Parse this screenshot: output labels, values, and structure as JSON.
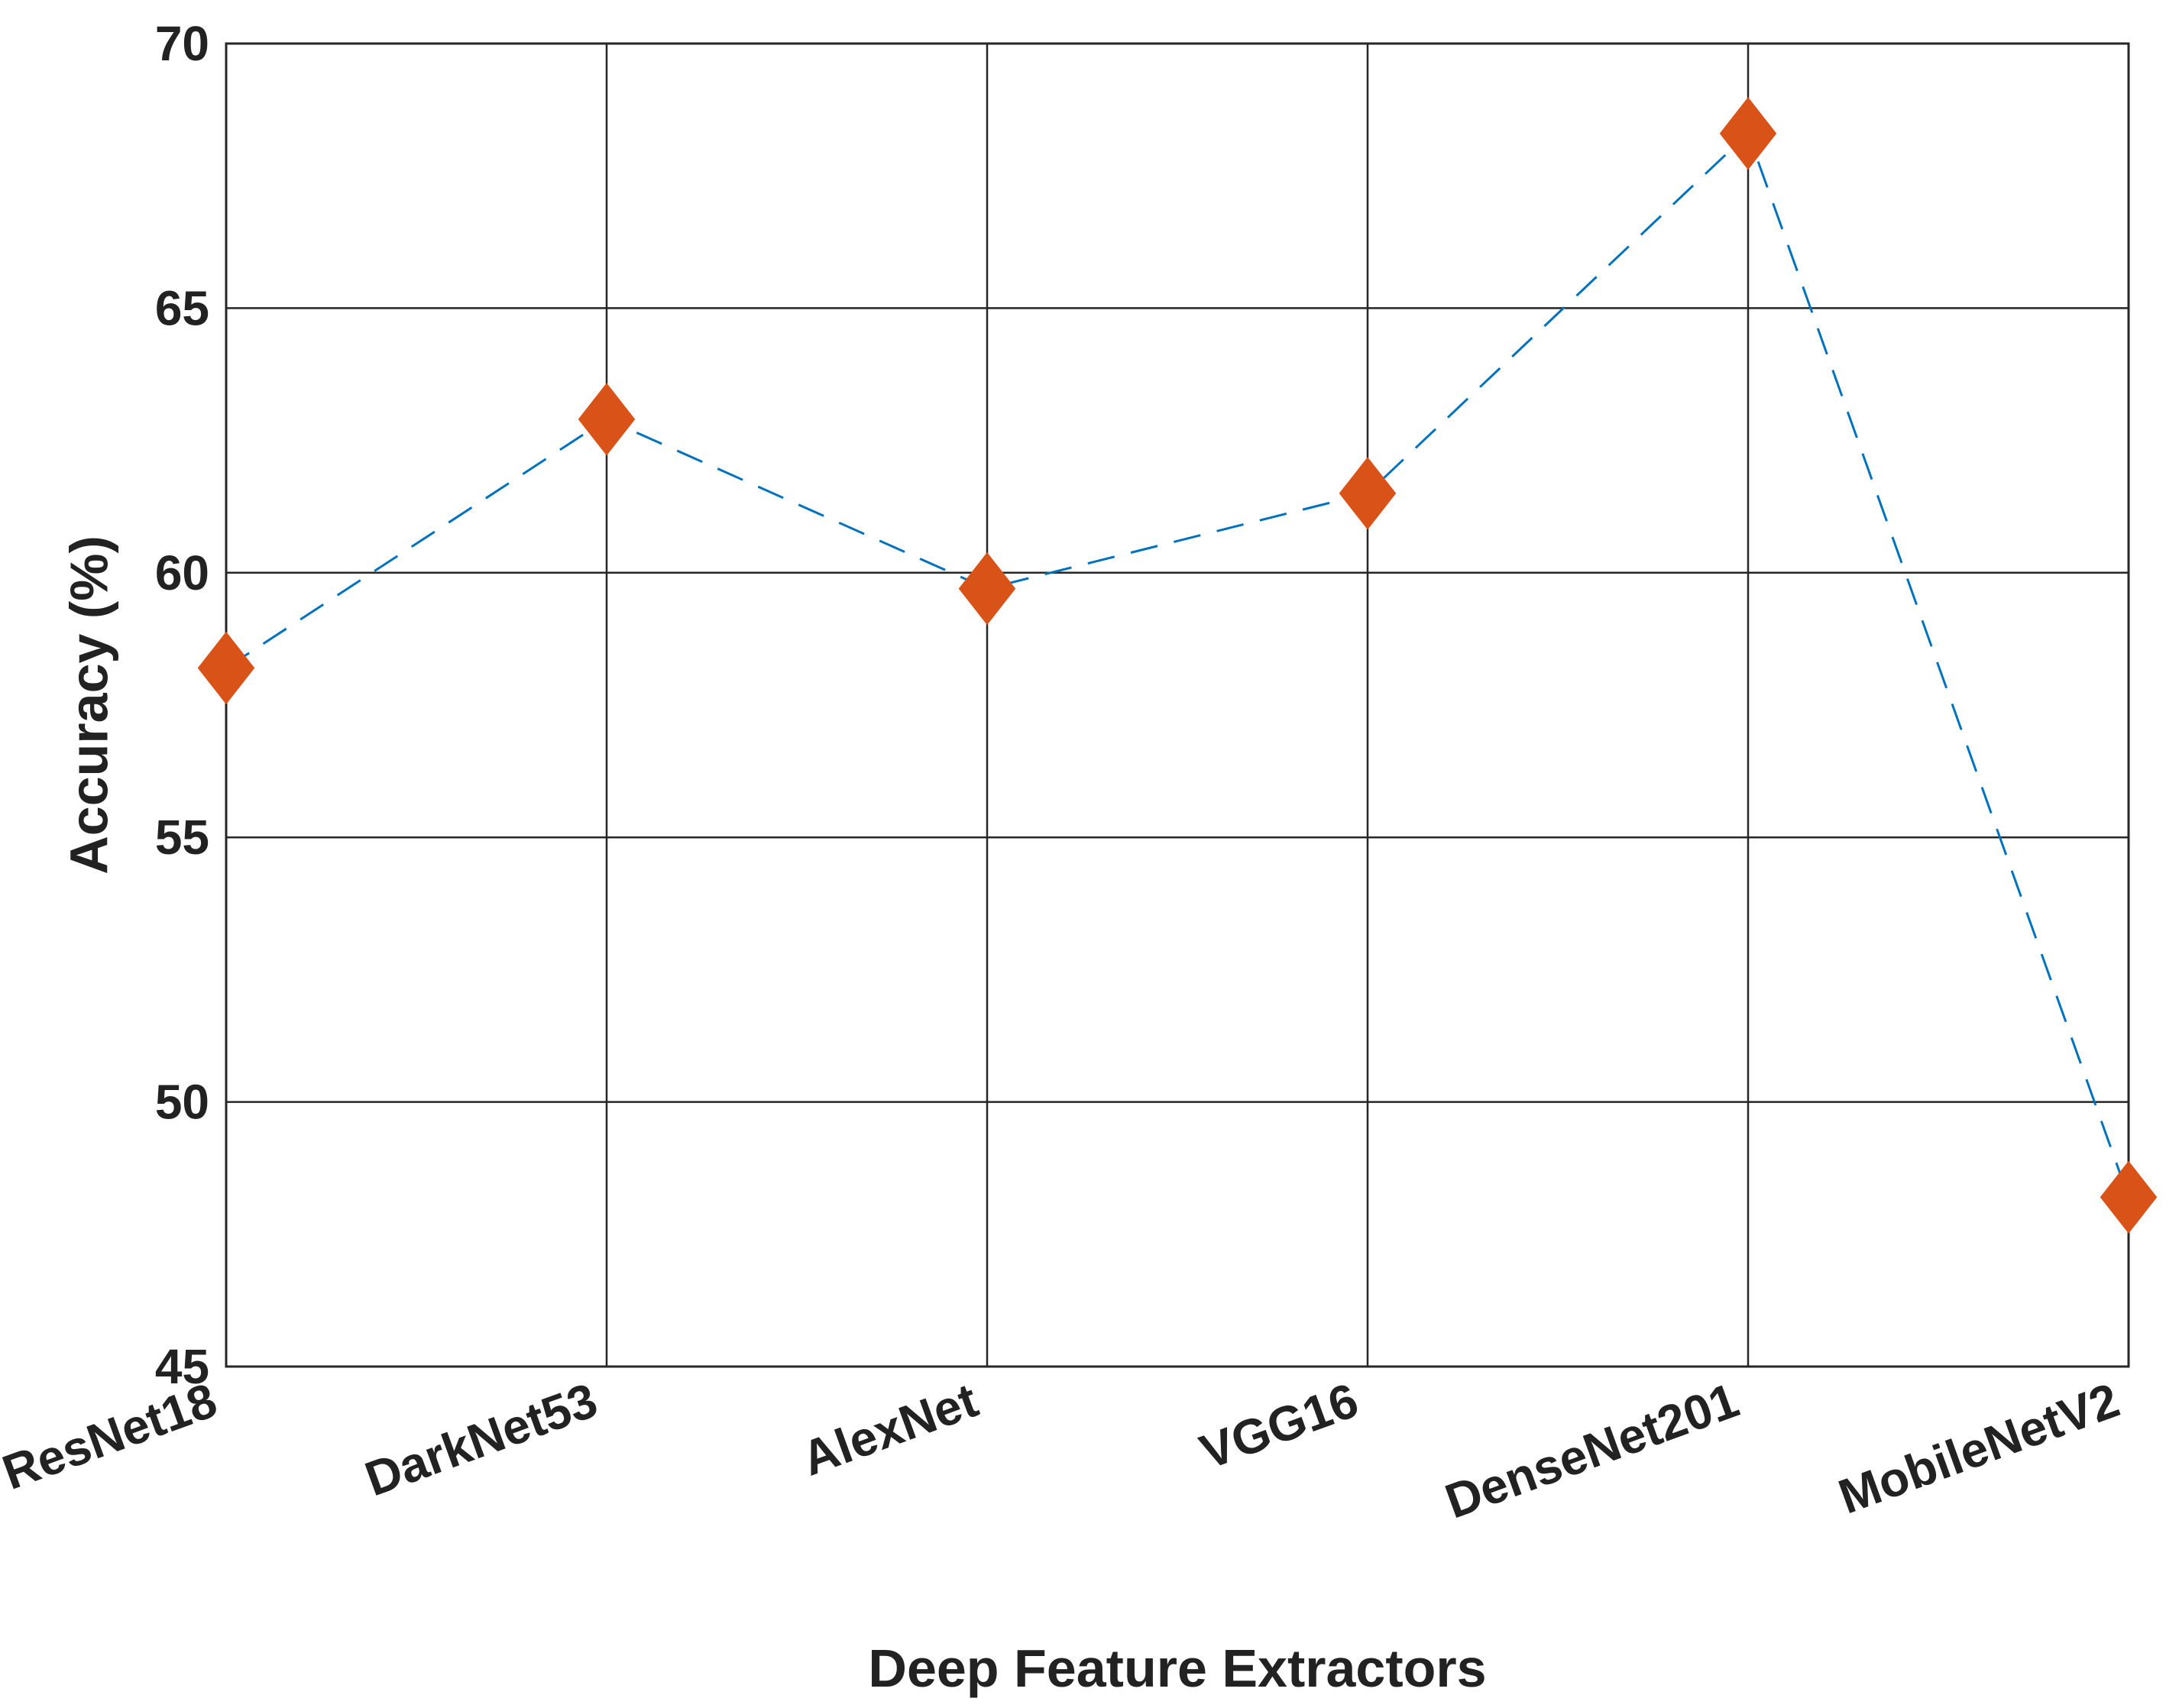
{
  "chart_data": {
    "type": "line",
    "title": "",
    "xlabel": "Deep Feature Extractors",
    "ylabel": "Accuracy (%)",
    "categories": [
      "ResNet18",
      "DarkNet53",
      "AlexNet",
      "VGG16",
      "DenseNet201",
      "MobileNetV2"
    ],
    "series": [
      {
        "values": [
          58.2,
          62.9,
          59.7,
          61.5,
          68.3,
          48.2
        ]
      }
    ],
    "ylim": [
      45,
      70
    ],
    "yticks": [
      45,
      50,
      55,
      60,
      65,
      70
    ],
    "grid": true,
    "legend": "none",
    "colors": {
      "line": "#0072BD",
      "marker": "#D95319",
      "grid": "#262626",
      "axis_text": "#222222"
    },
    "line_style": "dashed",
    "marker_shape": "diamond"
  }
}
